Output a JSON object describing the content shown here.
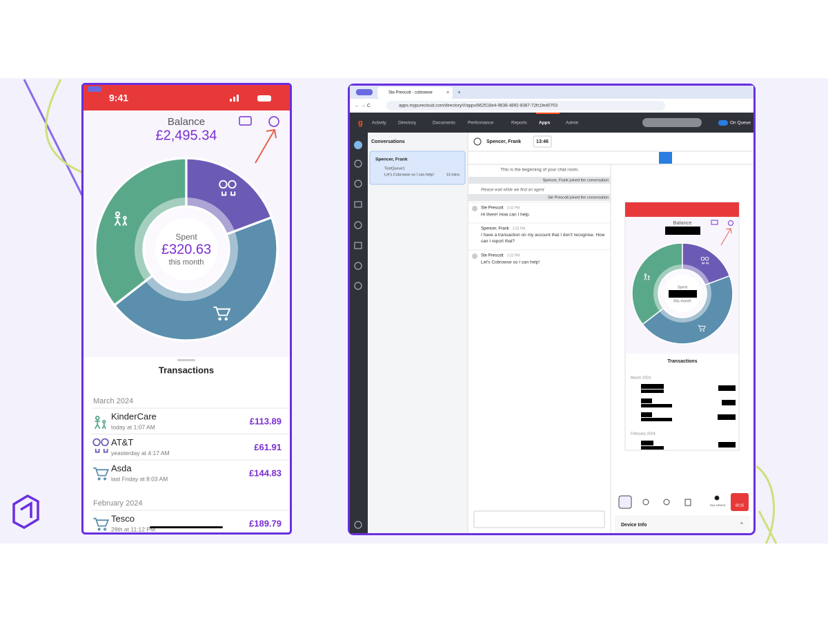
{
  "phone": {
    "time": "9:41",
    "balance_label": "Balance",
    "balance": "£2,495.34",
    "spent_label": "Spent",
    "spent": "£320.63",
    "spent_period": "this month",
    "transactions_title": "Transactions",
    "groups": [
      {
        "month": "March 2024",
        "items": [
          {
            "name": "KinderCare",
            "when": "today at 1:07 AM",
            "amount": {
              "value": 113.89,
              "label": "£113.89"
            },
            "color": "#5aa88a"
          },
          {
            "name": "AT&T",
            "when": "yeasterday at 4:17 AM",
            "amount": {
              "value": 61.91,
              "label": "£61.91"
            },
            "color": "#6b5bb5"
          },
          {
            "name": "Asda",
            "when": "last Friday at 8:03 AM",
            "amount": {
              "value": 144.83,
              "label": "£144.83"
            },
            "color": "#5b8fad"
          }
        ]
      },
      {
        "month": "February 2024",
        "items": [
          {
            "name": "Tesco",
            "when": "28th at 11:12 PM",
            "amount": {
              "value": 189.79,
              "label": "£189.79"
            },
            "color": "#5b8fad"
          }
        ]
      }
    ]
  },
  "browser": {
    "tab_title": "Ste Prescott - cobrowse",
    "url": "apps.mypurecloud.com/directory/#/apps/662518e4-9638-4892-8387-72fc1fe40703",
    "nav": [
      "Activity",
      "Directory",
      "Documents",
      "Performance",
      "Reports",
      "Apps",
      "Admin"
    ],
    "status": "On Queue"
  },
  "conversations": {
    "title": "Conversations",
    "card": {
      "name": "Spencer, Frank",
      "queue": "TestQueue1",
      "preview": "Let's Cobrowse so I can help!",
      "age": "13 mins"
    }
  },
  "chat": {
    "contact": "Spencer, Frank",
    "timer": "13:46",
    "notices": [
      "This is the beginning of your chat room.",
      "Spencer, Frank joined the conversation",
      "Please wait while we find an agent",
      "Ste Prescott joined the conversation"
    ],
    "messages": [
      {
        "sender": "Ste Prescott",
        "time": "3:32 PM",
        "text": "Hi there! How can I help."
      },
      {
        "sender": "Spencer, Frank",
        "time": "3:32 PM",
        "text": "I have a transaction on my account that I don't recognise. How can I report that?"
      },
      {
        "sender": "Ste Prescott",
        "time": "3:32 PM",
        "text": "Let's Cobrowse so I can help!"
      }
    ]
  },
  "cobrowse": {
    "balance_label": "Balance",
    "spent_label": "Spent",
    "spent_period": "this month",
    "transactions_title": "Transactions",
    "months": [
      "March 2024",
      "February 2024"
    ],
    "full_device": "FULL DEVICE",
    "call_time": "00:25",
    "device_info": "Device Info"
  }
}
